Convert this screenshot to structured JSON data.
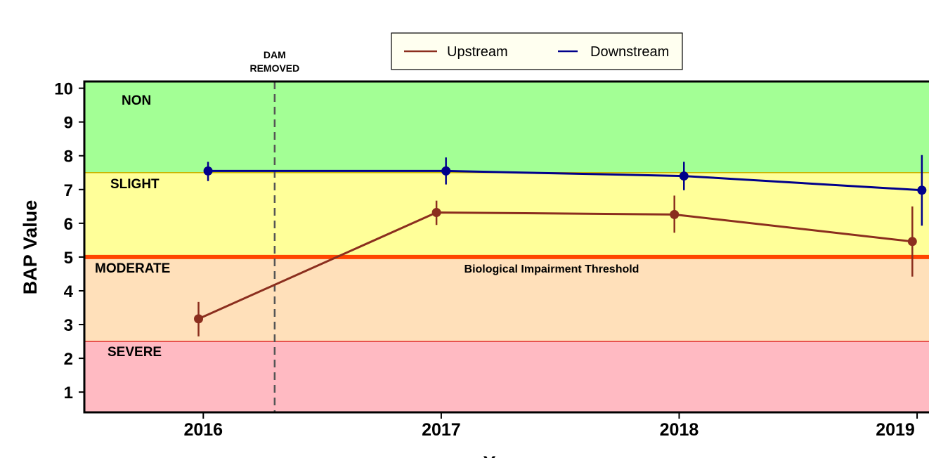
{
  "chart_data": {
    "type": "line",
    "title": "",
    "xlabel": "Year",
    "ylabel": "BAP Value",
    "x": [
      2016,
      2017,
      2018,
      2019
    ],
    "xlim": [
      2015.5,
      2019.05
    ],
    "ylim": [
      0.4,
      10.2
    ],
    "yticks": [
      1,
      2,
      3,
      4,
      5,
      6,
      7,
      8,
      9,
      10
    ],
    "grid": false,
    "legend_position": "top-center",
    "series": [
      {
        "name": "Upstream",
        "color": "#8B2E1E",
        "x": [
          2015.98,
          2016.98,
          2017.98,
          2018.98
        ],
        "y": [
          3.17,
          6.32,
          6.26,
          5.46
        ],
        "err_low": [
          2.65,
          5.95,
          5.72,
          4.42
        ],
        "err_high": [
          3.67,
          6.67,
          6.82,
          6.5
        ]
      },
      {
        "name": "Downstream",
        "color": "#00008B",
        "x": [
          2016.02,
          2017.02,
          2018.02,
          2019.02
        ],
        "y": [
          7.55,
          7.55,
          7.4,
          6.98
        ],
        "err_low": [
          7.25,
          7.15,
          6.98,
          5.93
        ],
        "err_high": [
          7.82,
          7.95,
          7.82,
          8.02
        ]
      }
    ],
    "zones": [
      {
        "label": "NON",
        "from": 7.5,
        "to": 10.2,
        "color": "#A3FF95"
      },
      {
        "label": "SLIGHT",
        "from": 5.0,
        "to": 7.5,
        "color": "#FFFF99"
      },
      {
        "label": "MODERATE",
        "from": 2.5,
        "to": 5.0,
        "color": "#FFE0BA"
      },
      {
        "label": "SEVERE",
        "from": 0.4,
        "to": 2.5,
        "color": "#FFBAC2"
      }
    ],
    "threshold": {
      "value": 5.0,
      "label": "Biological Impairment Threshold",
      "color": "#FF4500"
    },
    "annotation": {
      "label_line1": "DAM",
      "label_line2": "REMOVED",
      "x": 2016.3
    }
  }
}
